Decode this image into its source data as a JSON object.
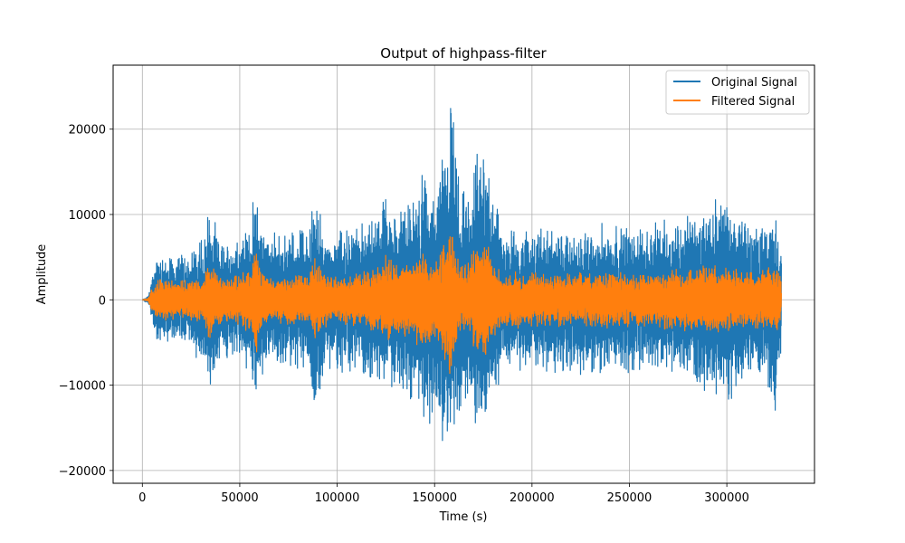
{
  "chart_data": {
    "type": "line",
    "title": "Output of highpass-filter",
    "xlabel": "Time (s)",
    "ylabel": "Amplitude",
    "xlim": [
      -15000,
      345000
    ],
    "ylim": [
      -21500,
      27500
    ],
    "x_ticks": [
      0,
      50000,
      100000,
      150000,
      200000,
      250000,
      300000
    ],
    "x_tick_labels": [
      "0",
      "50000",
      "100000",
      "150000",
      "200000",
      "250000",
      "300000"
    ],
    "y_ticks": [
      -20000,
      -10000,
      0,
      10000,
      20000
    ],
    "y_tick_labels": [
      "−20000",
      "−10000",
      "0",
      "10000",
      "20000"
    ],
    "grid": true,
    "legend_position": "top-right",
    "series": [
      {
        "name": "Original Signal",
        "color": "#1f77b4",
        "x_range": [
          0,
          328000
        ],
        "envelope": {
          "x": [
            0,
            3000,
            5000,
            8000,
            15000,
            25000,
            32000,
            34000,
            40000,
            50000,
            56000,
            58000,
            60000,
            65000,
            75000,
            85000,
            88000,
            95000,
            105000,
            115000,
            122000,
            125000,
            130000,
            140000,
            145000,
            150000,
            155000,
            158000,
            160000,
            163000,
            168000,
            172000,
            176000,
            180000,
            185000,
            200000,
            220000,
            240000,
            260000,
            280000,
            300000,
            310000,
            320000,
            325000,
            328000
          ],
          "upper": [
            0,
            500,
            3000,
            6000,
            5500,
            6000,
            9000,
            12000,
            7000,
            8000,
            9500,
            15300,
            11000,
            8000,
            8500,
            9000,
            13000,
            8500,
            9000,
            9500,
            11500,
            13500,
            11000,
            13000,
            16000,
            13500,
            21000,
            25000,
            24000,
            13000,
            14000,
            18000,
            19000,
            15000,
            8500,
            9000,
            8500,
            9500,
            9000,
            10500,
            13200,
            9500,
            10000,
            11000,
            6000
          ],
          "lower": [
            0,
            -500,
            -3000,
            -5500,
            -5000,
            -6000,
            -9000,
            -11000,
            -7000,
            -8500,
            -9500,
            -11800,
            -10500,
            -8000,
            -8500,
            -9000,
            -14500,
            -8500,
            -9000,
            -9500,
            -11500,
            -11800,
            -10500,
            -13000,
            -16000,
            -13500,
            -19000,
            -19500,
            -16000,
            -13000,
            -14500,
            -16500,
            -15500,
            -14000,
            -8500,
            -9000,
            -9000,
            -9500,
            -9000,
            -10500,
            -12500,
            -10000,
            -11000,
            -14500,
            -6500
          ]
        }
      },
      {
        "name": "Filtered Signal",
        "color": "#ff7f0e",
        "x_range": [
          0,
          328000
        ],
        "envelope": {
          "x": [
            0,
            3000,
            5000,
            8000,
            15000,
            25000,
            32000,
            34000,
            40000,
            50000,
            56000,
            58000,
            60000,
            65000,
            75000,
            85000,
            88000,
            95000,
            105000,
            115000,
            122000,
            125000,
            130000,
            140000,
            145000,
            150000,
            155000,
            158000,
            160000,
            163000,
            168000,
            172000,
            176000,
            180000,
            185000,
            200000,
            220000,
            240000,
            260000,
            280000,
            300000,
            310000,
            320000,
            325000,
            328000
          ],
          "upper": [
            0,
            200,
            1500,
            2800,
            2500,
            2600,
            3000,
            5000,
            2800,
            3200,
            4500,
            7800,
            4000,
            3000,
            3000,
            3500,
            5500,
            3000,
            3200,
            3500,
            4500,
            6000,
            4500,
            5000,
            6000,
            4500,
            7000,
            9800,
            7000,
            4200,
            5000,
            7000,
            7500,
            5000,
            3200,
            3500,
            3200,
            3500,
            3300,
            4000,
            4500,
            3600,
            3800,
            4200,
            2500
          ],
          "lower": [
            0,
            -200,
            -1500,
            -2800,
            -2500,
            -2600,
            -3000,
            -4800,
            -2800,
            -3200,
            -4500,
            -8000,
            -4000,
            -3000,
            -3000,
            -3500,
            -5500,
            -3000,
            -3200,
            -3500,
            -4500,
            -6000,
            -4500,
            -5000,
            -6500,
            -4500,
            -7500,
            -9300,
            -7000,
            -4200,
            -5000,
            -7000,
            -7500,
            -5000,
            -3200,
            -3500,
            -3200,
            -3500,
            -3300,
            -4000,
            -4500,
            -3600,
            -3800,
            -4200,
            -2500
          ]
        }
      }
    ]
  }
}
